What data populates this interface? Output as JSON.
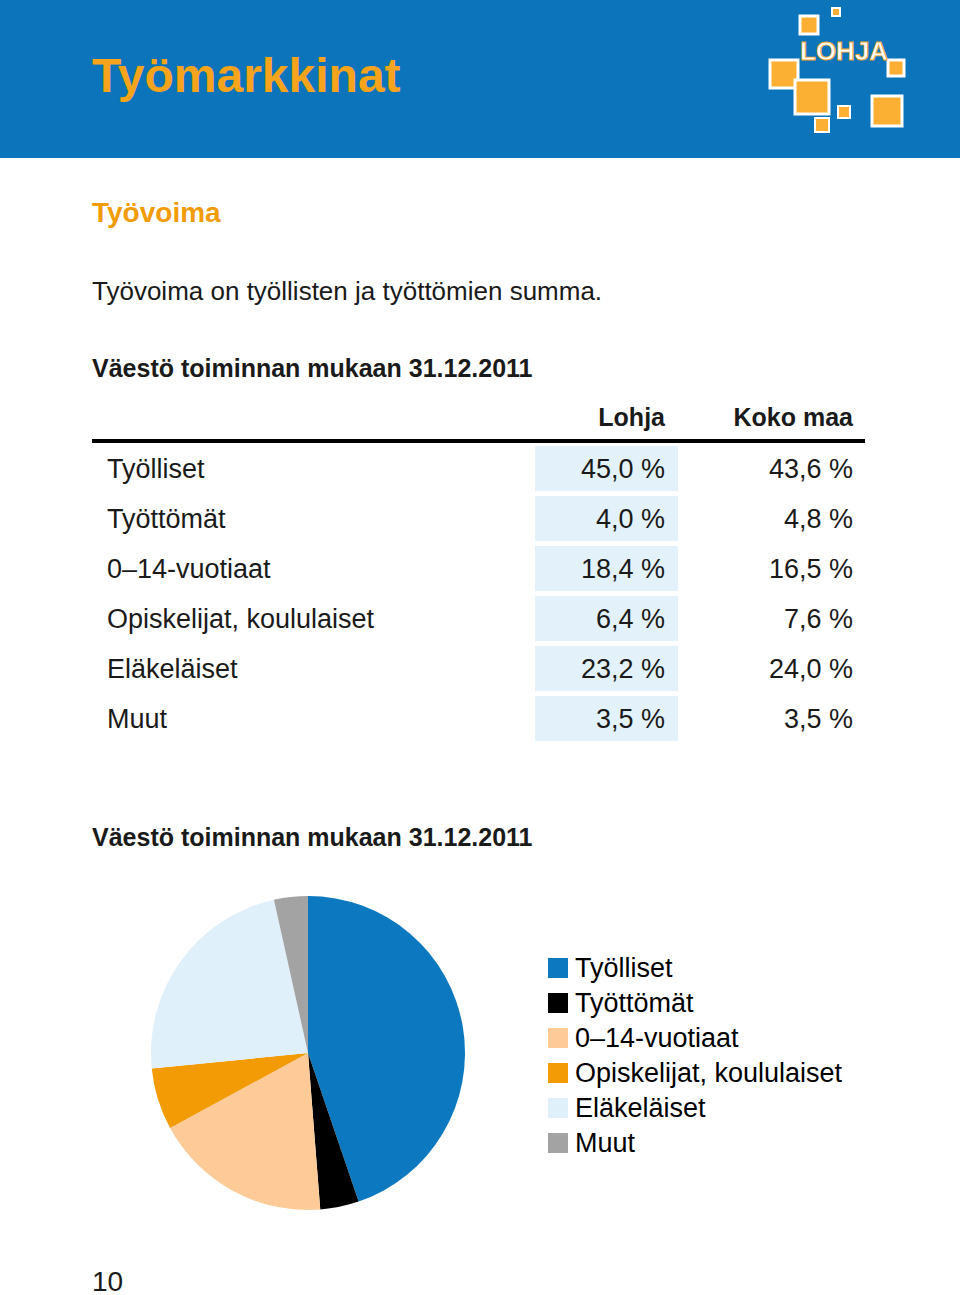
{
  "header": {
    "title": "Työmarkkinat",
    "logo": "LOHJA"
  },
  "section": {
    "title": "Työvoima",
    "text": "Työvoima on työllisten ja työttömien summa."
  },
  "table": {
    "title": "Väestö toiminnan mukaan 31.12.2011",
    "columns": [
      "Lohja",
      "Koko maa"
    ],
    "rows": [
      [
        "Työlliset",
        "45,0 %",
        "43,6 %"
      ],
      [
        "Työttömät",
        "4,0 %",
        "4,8 %"
      ],
      [
        "0–14-vuotiaat",
        "18,4 %",
        "16,5 %"
      ],
      [
        "Opiskelijat, koululaiset",
        "6,4 %",
        "7,6 %"
      ],
      [
        "Eläkeläiset",
        "23,2 %",
        "24,0 %"
      ],
      [
        "Muut",
        "3,5 %",
        "3,5 %"
      ]
    ]
  },
  "chart_data": {
    "type": "pie",
    "title": "Väestö toiminnan mukaan 31.12.2011",
    "categories": [
      "Työlliset",
      "Työttömät",
      "0–14-vuotiaat",
      "Opiskelijat, koululaiset",
      "Eläkeläiset",
      "Muut"
    ],
    "values": [
      45.0,
      4.0,
      18.4,
      6.4,
      23.2,
      3.5
    ],
    "colors": [
      "#0b78c0",
      "#000000",
      "#fdca98",
      "#f29b05",
      "#dff0fb",
      "#a3a3a3"
    ],
    "legend": "right"
  },
  "footer": {
    "page": "10"
  }
}
